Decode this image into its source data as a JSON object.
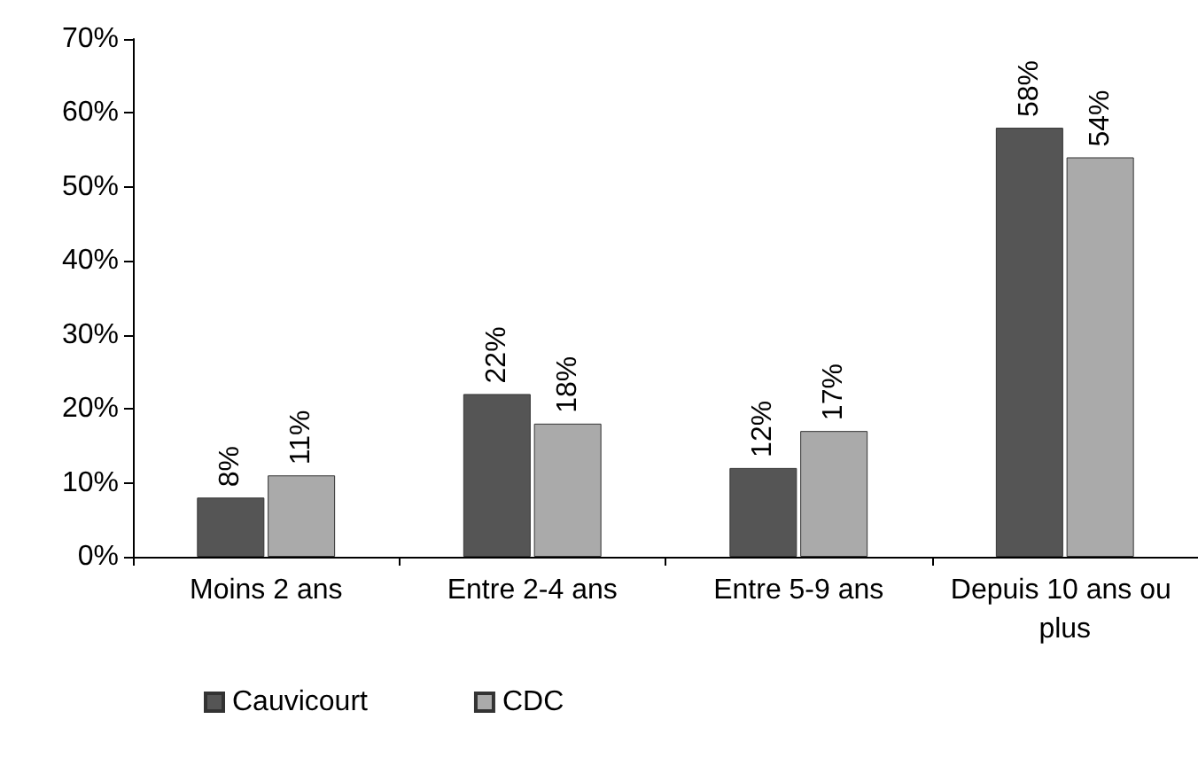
{
  "chart_data": {
    "type": "bar",
    "categories": [
      "Moins 2 ans",
      "Entre 2-4 ans",
      "Entre 5-9 ans",
      "Depuis 10 ans ou plus"
    ],
    "series": [
      {
        "name": "Cauvicourt",
        "color": "#555555",
        "values": [
          8,
          22,
          12,
          58
        ],
        "value_labels": [
          "8%",
          "22%",
          "12%",
          "58%"
        ]
      },
      {
        "name": "CDC",
        "color": "#aaaaaa",
        "values": [
          11,
          18,
          17,
          54
        ],
        "value_labels": [
          "11%",
          "18%",
          "17%",
          "54%"
        ]
      }
    ],
    "ylim": [
      0,
      70
    ],
    "yticks": [
      {
        "value": 0,
        "label": "0%"
      },
      {
        "value": 10,
        "label": "10%"
      },
      {
        "value": 20,
        "label": "20%"
      },
      {
        "value": 30,
        "label": "30%"
      },
      {
        "value": 40,
        "label": "40%"
      },
      {
        "value": 50,
        "label": "50%"
      },
      {
        "value": 60,
        "label": "60%"
      },
      {
        "value": 70,
        "label": "70%"
      }
    ],
    "grid": false,
    "legend": "bottom left"
  }
}
